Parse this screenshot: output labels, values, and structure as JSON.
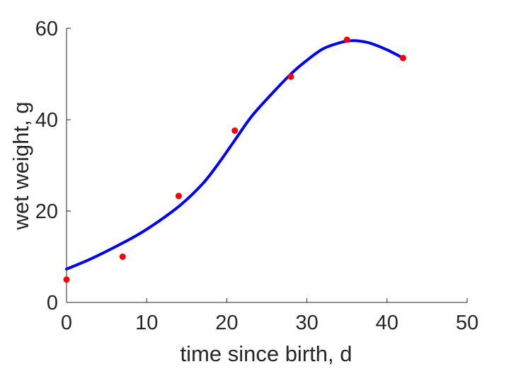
{
  "chart_data": {
    "type": "scatter",
    "xlabel": "time since birth, d",
    "ylabel": "wet weight, g",
    "xlim": [
      0,
      50
    ],
    "ylim": [
      0,
      60
    ],
    "xticks": [
      "0",
      "10",
      "20",
      "30",
      "40",
      "50"
    ],
    "yticks": [
      "0",
      "20",
      "40",
      "60"
    ],
    "grid": false,
    "series": [
      {
        "type": "scatter",
        "color": "#ff0000",
        "x": [
          0,
          7,
          14,
          21,
          28,
          35,
          42
        ],
        "y": [
          5,
          10,
          23.3,
          37.6,
          49.4,
          57.5,
          53.5
        ]
      },
      {
        "type": "line",
        "color": "#0000ff",
        "x": [
          0,
          3,
          7,
          10,
          14,
          17,
          19,
          21,
          23,
          25,
          28,
          30,
          32,
          34,
          35,
          36,
          37,
          38,
          40,
          42
        ],
        "y": [
          7.3,
          9.5,
          13,
          16,
          21,
          26,
          30.5,
          35.5,
          40.5,
          44.5,
          50,
          53,
          55.5,
          56.8,
          57.2,
          57.3,
          57.1,
          56.7,
          55.3,
          53.5
        ]
      }
    ]
  }
}
